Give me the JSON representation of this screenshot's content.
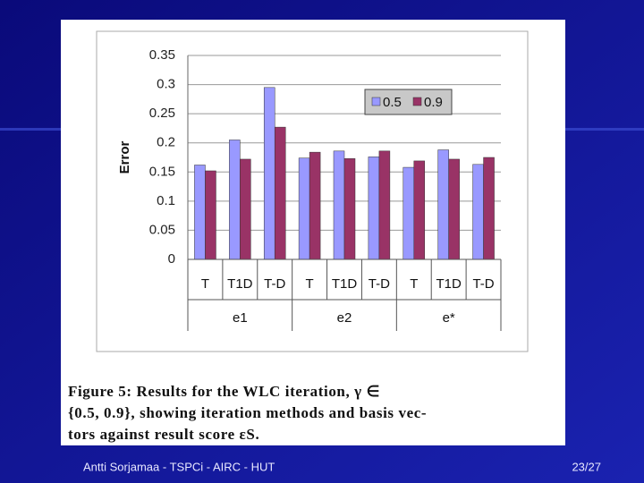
{
  "chart_data": {
    "type": "bar",
    "y_label": "Error",
    "categories": [
      "T",
      "T1D",
      "T-D",
      "T",
      "T1D",
      "T-D",
      "T",
      "T1D",
      "T-D"
    ],
    "group_labels": [
      "e1",
      "e2",
      "e*"
    ],
    "series": [
      {
        "name": "0.5",
        "color": "#9999ff",
        "values": [
          0.162,
          0.205,
          0.295,
          0.174,
          0.186,
          0.176,
          0.158,
          0.188,
          0.163
        ]
      },
      {
        "name": "0.9",
        "color": "#993366",
        "values": [
          0.152,
          0.172,
          0.227,
          0.184,
          0.173,
          0.186,
          0.169,
          0.172,
          0.175
        ]
      }
    ],
    "ylim": [
      0,
      0.35
    ],
    "yticks": [
      0,
      0.05,
      0.1,
      0.15,
      0.2,
      0.25,
      0.3,
      0.35
    ],
    "grid": true,
    "legend": "top-right"
  },
  "slide": {
    "caption": [
      "Figure 5:  Results for the WLC iteration, γ ∈",
      "{0.5, 0.9}, showing iteration methods and basis vec-",
      "tors against result score εS."
    ],
    "footer_left": "Antti Sorjamaa - TSPCi - AIRC - HUT",
    "footer_right": "23/27"
  }
}
